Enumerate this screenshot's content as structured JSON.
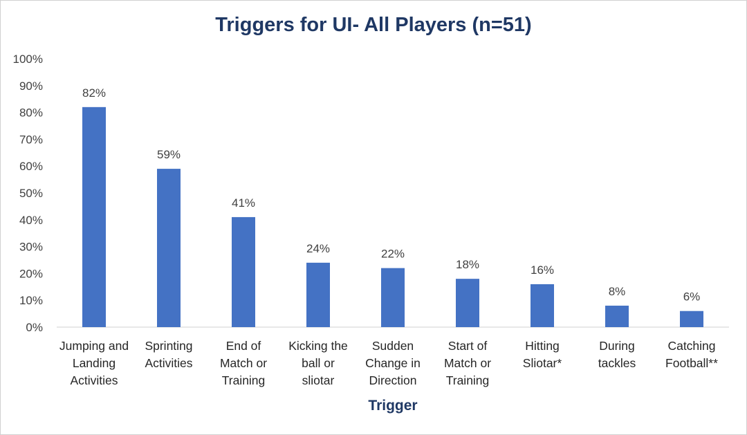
{
  "chart_data": {
    "type": "bar",
    "title": "Triggers for UI- All Players (n=51)",
    "xlabel": "Trigger",
    "ylabel": "",
    "ylim": [
      0,
      100
    ],
    "y_ticks": [
      "0%",
      "10%",
      "20%",
      "30%",
      "40%",
      "50%",
      "60%",
      "70%",
      "80%",
      "90%",
      "100%"
    ],
    "categories": [
      [
        "Jumping and",
        "Landing",
        "Activities"
      ],
      [
        "Sprinting",
        "Activities"
      ],
      [
        "End of",
        "Match or",
        "Training"
      ],
      [
        "Kicking the",
        "ball or",
        "sliotar"
      ],
      [
        "Sudden",
        "Change in",
        "Direction"
      ],
      [
        "Start of",
        "Match or",
        "Training"
      ],
      [
        "Hitting",
        "Sliotar*"
      ],
      [
        "During",
        "tackles"
      ],
      [
        "Catching",
        "Football**"
      ]
    ],
    "values": [
      82,
      59,
      41,
      24,
      22,
      18,
      16,
      8,
      6
    ],
    "data_labels": [
      "82%",
      "59%",
      "41%",
      "24%",
      "22%",
      "18%",
      "16%",
      "8%",
      "6%"
    ],
    "bar_color": "#4472c4",
    "grid": false,
    "legend": "none"
  }
}
